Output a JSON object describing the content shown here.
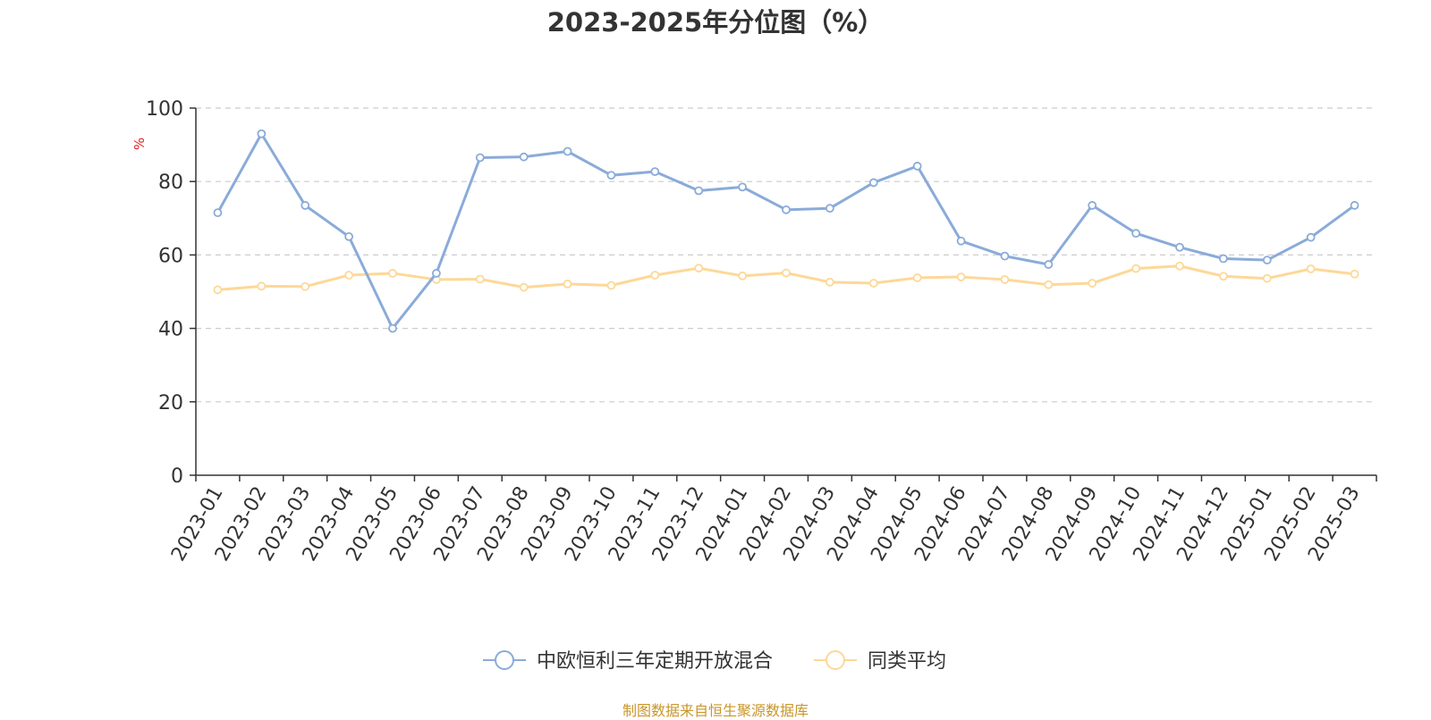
{
  "title": "2023-2025年分位图（%）",
  "footer": "制图数据来自恒生聚源数据库",
  "colors": {
    "fund": "#8aabd9",
    "average": "#fdd897",
    "grid": "#cccccc",
    "axis": "#333333",
    "unit": "#e02020",
    "footer": "#c8962a"
  },
  "chart_data": {
    "type": "line",
    "ylabel": "%",
    "ylim": [
      0,
      100
    ],
    "yticks": [
      0,
      20,
      40,
      60,
      80,
      100
    ],
    "grid": true,
    "legend": "bottom-center",
    "categories": [
      "2023-01",
      "2023-02",
      "2023-03",
      "2023-04",
      "2023-05",
      "2023-06",
      "2023-07",
      "2023-08",
      "2023-09",
      "2023-10",
      "2023-11",
      "2023-12",
      "2024-01",
      "2024-02",
      "2024-03",
      "2024-04",
      "2024-05",
      "2024-06",
      "2024-07",
      "2024-08",
      "2024-09",
      "2024-10",
      "2024-11",
      "2024-12",
      "2025-01",
      "2025-02",
      "2025-03"
    ],
    "series": [
      {
        "name": "中欧恒利三年定期开放混合",
        "color": "#8aabd9",
        "values": [
          71.5,
          93.0,
          73.5,
          65.0,
          40.0,
          55.0,
          86.5,
          86.7,
          88.2,
          81.7,
          82.7,
          77.5,
          78.5,
          72.3,
          72.7,
          79.7,
          84.2,
          63.8,
          59.7,
          57.4,
          73.5,
          65.9,
          62.1,
          59.0,
          58.6,
          64.8,
          73.5
        ]
      },
      {
        "name": "同类平均",
        "color": "#fdd897",
        "values": [
          50.5,
          51.5,
          51.4,
          54.5,
          55.0,
          53.3,
          53.4,
          51.2,
          52.1,
          51.7,
          54.5,
          56.4,
          54.3,
          55.1,
          52.6,
          52.3,
          53.8,
          54.0,
          53.3,
          51.9,
          52.3,
          56.3,
          57.0,
          54.2,
          53.6,
          56.2,
          54.8
        ]
      }
    ]
  }
}
